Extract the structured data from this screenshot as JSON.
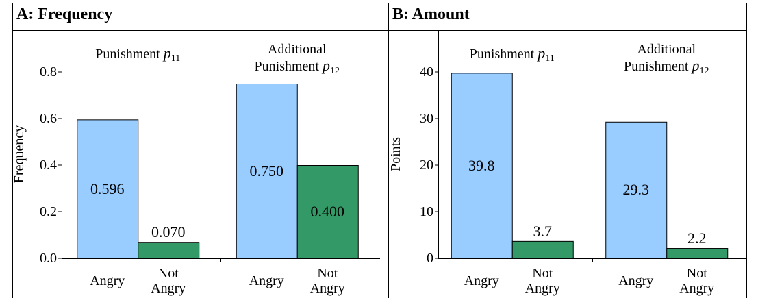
{
  "chart_data": [
    {
      "type": "bar",
      "title": "A: Frequency",
      "ylabel": "Frequency",
      "groups": [
        {
          "lines": [
            "Punishment"
          ],
          "symbol": "p",
          "subscript": "11"
        },
        {
          "lines": [
            "Additional",
            "Punishment"
          ],
          "symbol": "p",
          "subscript": "12"
        }
      ],
      "series": [
        {
          "name": "Angry",
          "color": "#99ccff",
          "values": [
            0.596,
            0.75
          ],
          "value_labels": [
            "0.596",
            "0.750"
          ]
        },
        {
          "name": "Not Angry",
          "color": "#339966",
          "values": [
            0.07,
            0.4
          ],
          "value_labels": [
            "0.070",
            "0.400"
          ]
        }
      ],
      "ylim": [
        0,
        0.96
      ],
      "yticks": [
        {
          "value": 0,
          "label": "0.0"
        },
        0.2,
        0.4,
        0.6,
        0.8
      ]
    },
    {
      "type": "bar",
      "title": "B: Amount",
      "ylabel": "Points",
      "groups": [
        {
          "lines": [
            "Punishment"
          ],
          "symbol": "p",
          "subscript": "11"
        },
        {
          "lines": [
            "Additional",
            "Punishment"
          ],
          "symbol": "p",
          "subscript": "12"
        }
      ],
      "series": [
        {
          "name": "Angry",
          "color": "#99ccff",
          "values": [
            39.8,
            29.3
          ]
        },
        {
          "name": "Not Angry",
          "color": "#339966",
          "values": [
            3.7,
            2.2
          ]
        }
      ],
      "ylim": [
        0,
        48
      ],
      "yticks": [
        0,
        10,
        20,
        30,
        40
      ]
    }
  ]
}
